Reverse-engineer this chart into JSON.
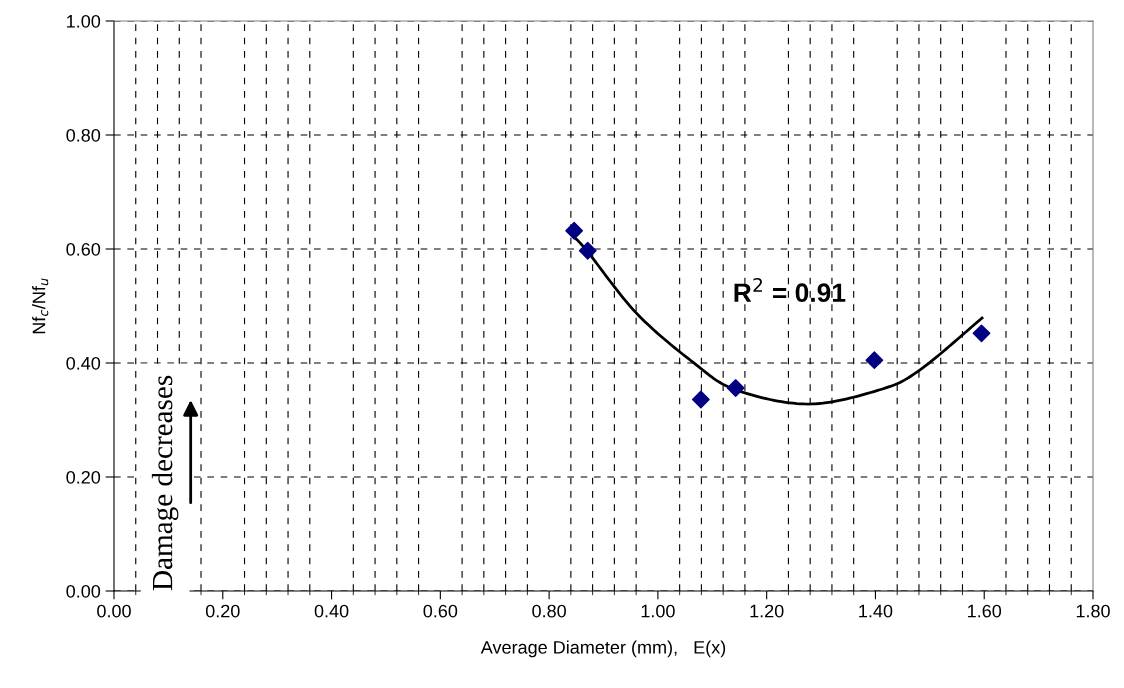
{
  "chart_data": {
    "type": "scatter",
    "xlabel": "Average Diameter (mm),   E(x)",
    "ylabel": "Nf$_{c}$/Nf$_{u}$",
    "series": [
      {
        "color": "#000080",
        "marker": "diamond",
        "x": [
          0.846,
          0.871,
          1.079,
          1.143,
          1.398,
          1.595
        ],
        "values": [
          0.632,
          0.597,
          0.336,
          0.356,
          0.405,
          0.452
        ]
      },
      {
        "type": "line",
        "color": "#000000",
        "marker": "none",
        "line_style": "solid",
        "x": [
          0.846,
          0.871,
          0.961,
          1.065,
          1.143,
          1.276,
          1.408,
          1.482,
          1.596
        ],
        "values": [
          0.621,
          0.595,
          0.487,
          0.401,
          0.353,
          0.328,
          0.353,
          0.388,
          0.479
        ]
      }
    ],
    "annotations": [
      "R$^{2}$ = 0.91",
      "Damage decreases"
    ],
    "xlim": [
      0,
      1.8
    ],
    "xticks": [
      {
        "value": 0,
        "label": "0.00"
      },
      {
        "value": 0.2,
        "label": "0.20"
      },
      {
        "value": 0.4,
        "label": "0.40"
      },
      {
        "value": 0.6,
        "label": "0.60"
      },
      {
        "value": 0.8,
        "label": "0.80"
      },
      {
        "value": 1.0,
        "label": "1.00"
      },
      {
        "value": 1.2,
        "label": "1.20"
      },
      {
        "value": 1.4,
        "label": "1.40"
      },
      {
        "value": 1.6,
        "label": "1.60"
      },
      {
        "value": 1.8,
        "label": "1.80"
      }
    ],
    "ylim": [
      0,
      1.0
    ],
    "yticks": [
      {
        "value": 0,
        "label": "0.00"
      },
      {
        "value": 0.2,
        "label": "0.20"
      },
      {
        "value": 0.4,
        "label": "0.40"
      },
      {
        "value": 0.6,
        "label": "0.60"
      },
      {
        "value": 0.8,
        "label": "0.80"
      },
      {
        "value": 1.0,
        "label": "1.00"
      }
    ],
    "grid": true,
    "legend": false
  }
}
